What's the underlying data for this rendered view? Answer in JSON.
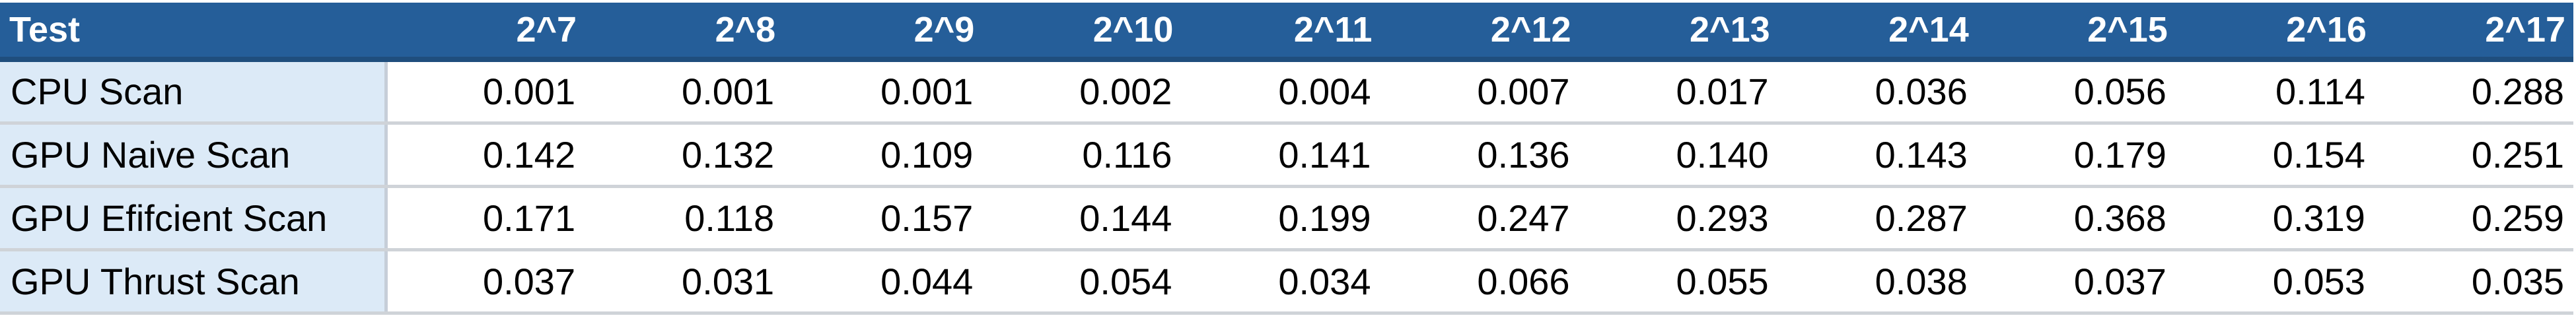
{
  "table": {
    "header_label": "Test",
    "columns": [
      "2^7",
      "2^8",
      "2^9",
      "2^10",
      "2^11",
      "2^12",
      "2^13",
      "2^14",
      "2^15",
      "2^16",
      "2^17"
    ],
    "rows": [
      {
        "label": "CPU Scan",
        "values": [
          "0.001",
          "0.001",
          "0.001",
          "0.002",
          "0.004",
          "0.007",
          "0.017",
          "0.036",
          "0.056",
          "0.114",
          "0.288"
        ]
      },
      {
        "label": "GPU Naive Scan",
        "values": [
          "0.142",
          "0.132",
          "0.109",
          "0.116",
          "0.141",
          "0.136",
          "0.140",
          "0.143",
          "0.179",
          "0.154",
          "0.251"
        ]
      },
      {
        "label": "GPU Efifcient Scan",
        "values": [
          "0.171",
          "0.118",
          "0.157",
          "0.144",
          "0.199",
          "0.247",
          "0.293",
          "0.287",
          "0.368",
          "0.319",
          "0.259"
        ]
      },
      {
        "label": "GPU Thrust Scan",
        "values": [
          "0.037",
          "0.031",
          "0.044",
          "0.054",
          "0.034",
          "0.066",
          "0.055",
          "0.038",
          "0.037",
          "0.053",
          "0.035"
        ]
      }
    ]
  },
  "colors": {
    "header_background": "#255e99",
    "header_text": "#ffffff",
    "label_column_background": "#dceaf7",
    "row_separator": "#cfd3d8"
  }
}
